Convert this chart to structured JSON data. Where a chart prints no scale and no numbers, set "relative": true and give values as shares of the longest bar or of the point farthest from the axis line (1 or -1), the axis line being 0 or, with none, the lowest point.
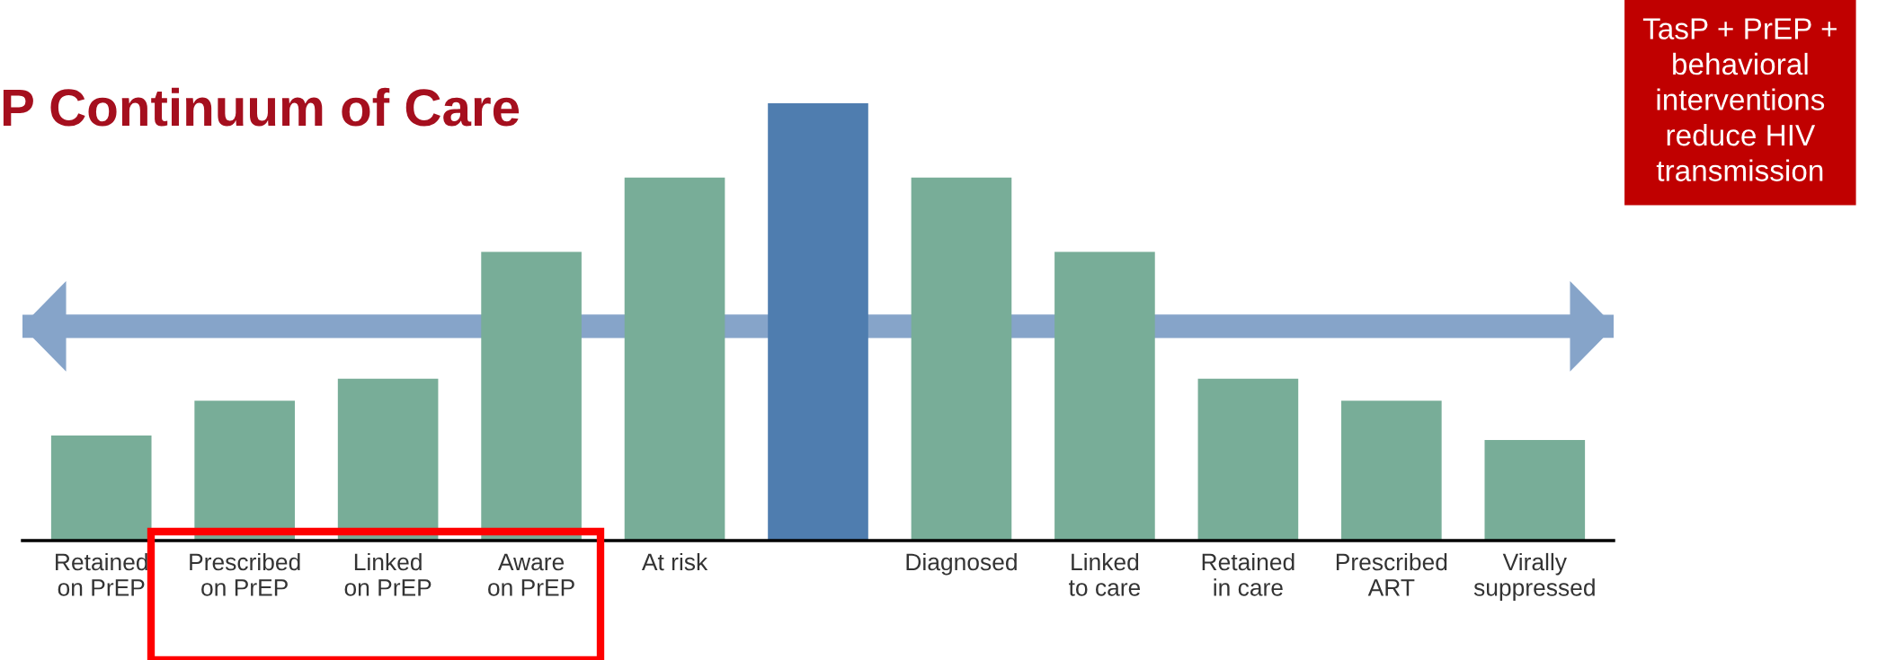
{
  "chart_data": {
    "type": "bar",
    "title": "P Continuum of Care",
    "relative": true,
    "categories": [
      "Retained\non PrEP",
      "Prescribed\non PrEP",
      "Linked\non PrEP",
      "Aware\non PrEP",
      "At risk",
      null,
      "Diagnosed",
      "Linked\nto care",
      "Retained\nin care",
      "Prescribed\nART",
      "Virally\nsuppressed"
    ],
    "values": [
      0.24,
      0.32,
      0.37,
      0.66,
      0.83,
      1,
      0.83,
      0.66,
      0.37,
      0.32,
      0.23
    ],
    "colors": [
      "#78ad98",
      "#78ad98",
      "#78ad98",
      "#78ad98",
      "#78ad98",
      "#4f7daf",
      "#78ad98",
      "#78ad98",
      "#78ad98",
      "#78ad98",
      "#78ad98"
    ],
    "annotations": [
      "TasP + PrEP +\nbehavioral\ninterventions\nreduce HIV\ntransmission"
    ],
    "grid": false,
    "legend": false
  }
}
